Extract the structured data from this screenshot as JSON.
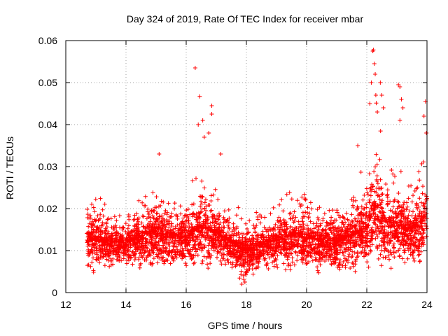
{
  "chart_data": {
    "type": "scatter",
    "title": "Day 324 of 2019, Rate Of TEC Index for receiver mbar",
    "xlabel": "GPS time / hours",
    "ylabel": "ROTI / TECUs",
    "xlim": [
      12,
      24
    ],
    "ylim": [
      0,
      0.06
    ],
    "xticks": [
      12,
      14,
      16,
      18,
      20,
      22,
      24
    ],
    "xtick_labels": [
      "12",
      "14",
      "16",
      "18",
      "20",
      "22",
      "24"
    ],
    "yticks": [
      0,
      0.01,
      0.02,
      0.03,
      0.04,
      0.05,
      0.06
    ],
    "ytick_labels": [
      "0",
      "0.01",
      "0.02",
      "0.03",
      "0.04",
      "0.05",
      "0.06"
    ],
    "grid": true,
    "marker": "plus",
    "marker_color": "#ff0000",
    "series": [
      {
        "name": "ROTI",
        "envelope": [
          {
            "x": 12.7,
            "lo": 0.004,
            "hi": 0.027
          },
          {
            "x": 13.0,
            "lo": 0.004,
            "hi": 0.025
          },
          {
            "x": 13.5,
            "lo": 0.005,
            "hi": 0.023
          },
          {
            "x": 14.0,
            "lo": 0.005,
            "hi": 0.022
          },
          {
            "x": 14.5,
            "lo": 0.005,
            "hi": 0.026
          },
          {
            "x": 15.0,
            "lo": 0.004,
            "hi": 0.03
          },
          {
            "x": 15.5,
            "lo": 0.005,
            "hi": 0.025
          },
          {
            "x": 16.0,
            "lo": 0.004,
            "hi": 0.027
          },
          {
            "x": 16.5,
            "lo": 0.005,
            "hi": 0.032
          },
          {
            "x": 17.0,
            "lo": 0.005,
            "hi": 0.028
          },
          {
            "x": 17.5,
            "lo": 0.004,
            "hi": 0.024
          },
          {
            "x": 17.9,
            "lo": 0.002,
            "hi": 0.022
          },
          {
            "x": 18.5,
            "lo": 0.004,
            "hi": 0.022
          },
          {
            "x": 19.0,
            "lo": 0.004,
            "hi": 0.025
          },
          {
            "x": 19.5,
            "lo": 0.004,
            "hi": 0.028
          },
          {
            "x": 20.0,
            "lo": 0.004,
            "hi": 0.027
          },
          {
            "x": 20.5,
            "lo": 0.004,
            "hi": 0.024
          },
          {
            "x": 21.0,
            "lo": 0.003,
            "hi": 0.026
          },
          {
            "x": 21.5,
            "lo": 0.003,
            "hi": 0.03
          },
          {
            "x": 22.0,
            "lo": 0.003,
            "hi": 0.034
          },
          {
            "x": 22.3,
            "lo": 0.003,
            "hi": 0.048
          },
          {
            "x": 22.6,
            "lo": 0.004,
            "hi": 0.036
          },
          {
            "x": 23.0,
            "lo": 0.004,
            "hi": 0.034
          },
          {
            "x": 23.5,
            "lo": 0.004,
            "hi": 0.03
          },
          {
            "x": 24.0,
            "lo": 0.004,
            "hi": 0.04
          }
        ],
        "outliers": [
          {
            "x": 16.3,
            "y": 0.0535
          },
          {
            "x": 16.45,
            "y": 0.0467
          },
          {
            "x": 16.4,
            "y": 0.04
          },
          {
            "x": 16.55,
            "y": 0.041
          },
          {
            "x": 16.85,
            "y": 0.0445
          },
          {
            "x": 16.85,
            "y": 0.0425
          },
          {
            "x": 16.6,
            "y": 0.037
          },
          {
            "x": 16.75,
            "y": 0.038
          },
          {
            "x": 17.15,
            "y": 0.033
          },
          {
            "x": 15.1,
            "y": 0.033
          },
          {
            "x": 22.22,
            "y": 0.0578
          },
          {
            "x": 22.2,
            "y": 0.0575
          },
          {
            "x": 22.25,
            "y": 0.0545
          },
          {
            "x": 22.28,
            "y": 0.052
          },
          {
            "x": 22.15,
            "y": 0.05
          },
          {
            "x": 22.3,
            "y": 0.047
          },
          {
            "x": 22.45,
            "y": 0.05
          },
          {
            "x": 22.5,
            "y": 0.047
          },
          {
            "x": 22.55,
            "y": 0.044
          },
          {
            "x": 22.1,
            "y": 0.045
          },
          {
            "x": 22.35,
            "y": 0.043
          },
          {
            "x": 23.05,
            "y": 0.0495
          },
          {
            "x": 23.1,
            "y": 0.049
          },
          {
            "x": 23.15,
            "y": 0.046
          },
          {
            "x": 23.2,
            "y": 0.044
          },
          {
            "x": 23.1,
            "y": 0.041
          },
          {
            "x": 23.95,
            "y": 0.0455
          },
          {
            "x": 23.9,
            "y": 0.042
          },
          {
            "x": 23.98,
            "y": 0.038
          },
          {
            "x": 21.7,
            "y": 0.035
          },
          {
            "x": 17.85,
            "y": 0.002
          },
          {
            "x": 17.95,
            "y": 0.0025
          }
        ]
      }
    ]
  }
}
